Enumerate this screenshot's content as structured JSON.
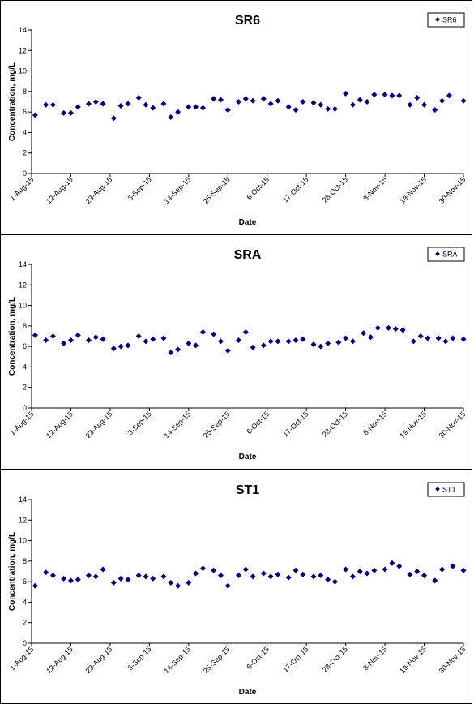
{
  "chart_data": [
    {
      "type": "scatter",
      "title": "SR6",
      "xlabel": "Date",
      "ylabel": "Concentration, mg/L",
      "ylim": [
        0,
        14
      ],
      "yticks": [
        0,
        2,
        4,
        6,
        8,
        10,
        12,
        14
      ],
      "xlim": [
        "2015-08-01",
        "2015-11-30"
      ],
      "xtick_labels": [
        "1-Aug-15",
        "12-Aug-15",
        "23-Aug-15",
        "3-Sep-15",
        "14-Sep-15",
        "25-Sep-15",
        "6-Oct-15",
        "17-Oct-15",
        "28-Oct-15",
        "8-Nov-15",
        "19-Nov-15",
        "30-Nov-15"
      ],
      "legend_position": "top-right",
      "grid": false,
      "marker_color": "#00007F",
      "series": [
        {
          "name": "SR6",
          "x": [
            "2015-08-02",
            "2015-08-05",
            "2015-08-07",
            "2015-08-10",
            "2015-08-12",
            "2015-08-14",
            "2015-08-17",
            "2015-08-19",
            "2015-08-21",
            "2015-08-24",
            "2015-08-26",
            "2015-08-28",
            "2015-08-31",
            "2015-09-02",
            "2015-09-04",
            "2015-09-07",
            "2015-09-09",
            "2015-09-11",
            "2015-09-14",
            "2015-09-16",
            "2015-09-18",
            "2015-09-21",
            "2015-09-23",
            "2015-09-25",
            "2015-09-28",
            "2015-09-30",
            "2015-10-02",
            "2015-10-05",
            "2015-10-07",
            "2015-10-09",
            "2015-10-12",
            "2015-10-14",
            "2015-10-16",
            "2015-10-19",
            "2015-10-21",
            "2015-10-23",
            "2015-10-25",
            "2015-10-28",
            "2015-10-30",
            "2015-11-01",
            "2015-11-03",
            "2015-11-05",
            "2015-11-08",
            "2015-11-10",
            "2015-11-12",
            "2015-11-15",
            "2015-11-17",
            "2015-11-19",
            "2015-11-22",
            "2015-11-24",
            "2015-11-26",
            "2015-11-30"
          ],
          "y": [
            5.7,
            6.7,
            6.7,
            5.9,
            5.9,
            6.5,
            6.8,
            7.0,
            6.8,
            5.4,
            6.6,
            6.8,
            7.4,
            6.7,
            6.4,
            6.8,
            5.5,
            6.0,
            6.5,
            6.5,
            6.4,
            7.3,
            7.2,
            6.2,
            7.0,
            7.3,
            7.1,
            7.3,
            6.8,
            7.1,
            6.5,
            6.2,
            7.0,
            6.9,
            6.7,
            6.3,
            6.3,
            7.8,
            6.7,
            7.2,
            7.0,
            7.7,
            7.7,
            7.6,
            7.6,
            6.7,
            7.4,
            6.7,
            6.2,
            7.1,
            7.6,
            7.1
          ]
        }
      ]
    },
    {
      "type": "scatter",
      "title": "SRA",
      "xlabel": "Date",
      "ylabel": "Concentration, mg/L",
      "ylim": [
        0,
        14
      ],
      "yticks": [
        0,
        2,
        4,
        6,
        8,
        10,
        12,
        14
      ],
      "xlim": [
        "2015-08-01",
        "2015-11-30"
      ],
      "xtick_labels": [
        "1-Aug-15",
        "12-Aug-15",
        "23-Aug-15",
        "3-Sep-15",
        "14-Sep-15",
        "25-Sep-15",
        "6-Oct-15",
        "17-Oct-15",
        "28-Oct-15",
        "8-Nov-15",
        "19-Nov-15",
        "30-Nov-15"
      ],
      "legend_position": "top-right",
      "grid": false,
      "marker_color": "#00007F",
      "series": [
        {
          "name": "SRA",
          "x": [
            "2015-08-02",
            "2015-08-05",
            "2015-08-07",
            "2015-08-10",
            "2015-08-12",
            "2015-08-14",
            "2015-08-17",
            "2015-08-19",
            "2015-08-21",
            "2015-08-24",
            "2015-08-26",
            "2015-08-28",
            "2015-08-31",
            "2015-09-02",
            "2015-09-04",
            "2015-09-07",
            "2015-09-09",
            "2015-09-11",
            "2015-09-14",
            "2015-09-16",
            "2015-09-18",
            "2015-09-21",
            "2015-09-23",
            "2015-09-25",
            "2015-09-28",
            "2015-09-30",
            "2015-10-02",
            "2015-10-05",
            "2015-10-07",
            "2015-10-09",
            "2015-10-12",
            "2015-10-14",
            "2015-10-16",
            "2015-10-19",
            "2015-10-21",
            "2015-10-23",
            "2015-10-26",
            "2015-10-28",
            "2015-10-30",
            "2015-11-02",
            "2015-11-04",
            "2015-11-06",
            "2015-11-09",
            "2015-11-11",
            "2015-11-13",
            "2015-11-16",
            "2015-11-18",
            "2015-11-20",
            "2015-11-23",
            "2015-11-25",
            "2015-11-27",
            "2015-11-30"
          ],
          "y": [
            7.1,
            6.6,
            7.0,
            6.3,
            6.6,
            7.1,
            6.6,
            6.9,
            6.7,
            5.8,
            6.0,
            6.1,
            7.0,
            6.5,
            6.7,
            6.8,
            5.4,
            5.7,
            6.3,
            6.1,
            7.4,
            7.2,
            6.5,
            5.6,
            6.6,
            7.4,
            5.9,
            6.1,
            6.5,
            6.5,
            6.5,
            6.6,
            6.7,
            6.2,
            6.0,
            6.3,
            6.4,
            6.8,
            6.5,
            7.3,
            6.9,
            7.8,
            7.8,
            7.7,
            7.6,
            6.5,
            7.0,
            6.8,
            6.8,
            6.5,
            6.8,
            6.7
          ]
        }
      ]
    },
    {
      "type": "scatter",
      "title": "ST1",
      "xlabel": "Date",
      "ylabel": "Concentration, mg/L",
      "ylim": [
        0,
        14
      ],
      "yticks": [
        0,
        2,
        4,
        6,
        8,
        10,
        12,
        14
      ],
      "xlim": [
        "2015-08-01",
        "2015-11-30"
      ],
      "xtick_labels": [
        "1-Aug-15",
        "12-Aug-15",
        "23-Aug-15",
        "3-Sep-15",
        "14-Sep-15",
        "25-Sep-15",
        "6-Oct-15",
        "17-Oct-15",
        "28-Oct-15",
        "8-Nov-15",
        "19-Nov-15",
        "30-Nov-15"
      ],
      "legend_position": "top-right",
      "grid": false,
      "marker_color": "#00007F",
      "series": [
        {
          "name": "ST1",
          "x": [
            "2015-08-02",
            "2015-08-05",
            "2015-08-07",
            "2015-08-10",
            "2015-08-12",
            "2015-08-14",
            "2015-08-17",
            "2015-08-19",
            "2015-08-21",
            "2015-08-24",
            "2015-08-26",
            "2015-08-28",
            "2015-08-31",
            "2015-09-02",
            "2015-09-04",
            "2015-09-07",
            "2015-09-09",
            "2015-09-11",
            "2015-09-14",
            "2015-09-16",
            "2015-09-18",
            "2015-09-21",
            "2015-09-23",
            "2015-09-25",
            "2015-09-28",
            "2015-09-30",
            "2015-10-02",
            "2015-10-05",
            "2015-10-07",
            "2015-10-09",
            "2015-10-12",
            "2015-10-14",
            "2015-10-16",
            "2015-10-19",
            "2015-10-21",
            "2015-10-23",
            "2015-10-25",
            "2015-10-28",
            "2015-10-30",
            "2015-11-01",
            "2015-11-03",
            "2015-11-05",
            "2015-11-08",
            "2015-11-10",
            "2015-11-12",
            "2015-11-15",
            "2015-11-17",
            "2015-11-19",
            "2015-11-22",
            "2015-11-24",
            "2015-11-27",
            "2015-11-30"
          ],
          "y": [
            5.6,
            6.9,
            6.6,
            6.3,
            6.1,
            6.2,
            6.6,
            6.5,
            7.2,
            5.9,
            6.3,
            6.2,
            6.6,
            6.5,
            6.3,
            6.5,
            5.9,
            5.6,
            5.9,
            6.8,
            7.3,
            7.1,
            6.6,
            5.6,
            6.6,
            7.2,
            6.5,
            6.8,
            6.5,
            6.7,
            6.4,
            7.1,
            6.7,
            6.5,
            6.6,
            6.2,
            6.0,
            7.2,
            6.5,
            7.0,
            6.8,
            7.1,
            7.2,
            7.8,
            7.5,
            6.7,
            7.0,
            6.6,
            6.1,
            7.2,
            7.5,
            7.1
          ]
        }
      ]
    }
  ]
}
